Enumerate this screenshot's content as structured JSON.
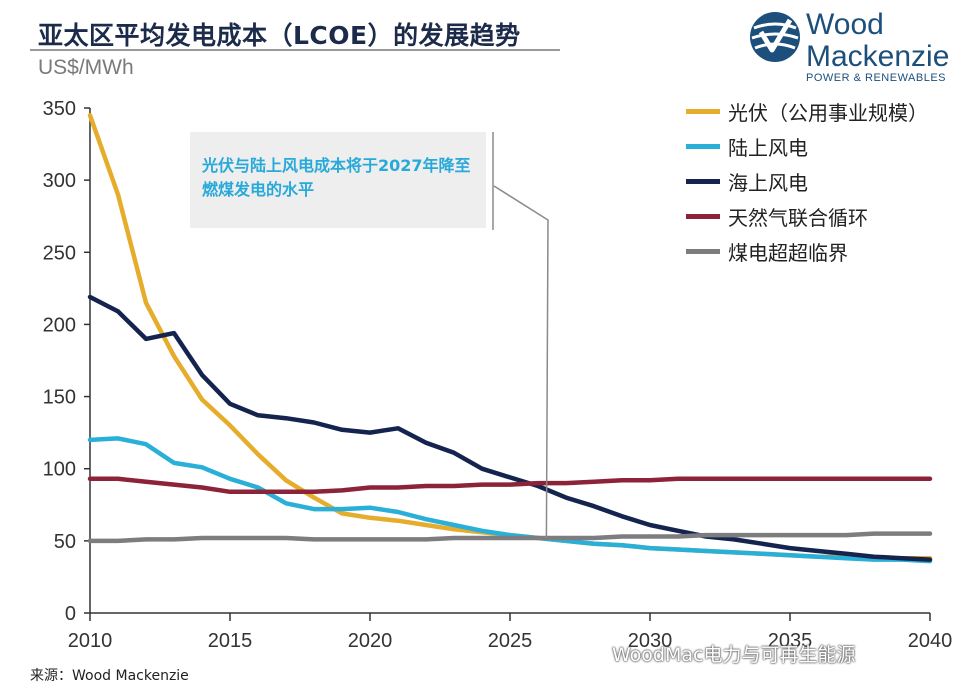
{
  "header": {
    "title": "亚太区平均发电成本（LCOE）的发展趋势",
    "unit": "US$/MWh"
  },
  "logo": {
    "line1": "Wood",
    "line2": "Mackenzie",
    "sub": "POWER & RENEWABLES",
    "color": "#1d4f7c"
  },
  "callout": {
    "text": "光伏与陆上风电成本将于2027年降至燃煤发电的水平"
  },
  "source": "来源：Wood Mackenzie",
  "watermark": "WoodMac电力与可再生能源",
  "chart_data": {
    "type": "line",
    "title": "亚太区平均发电成本（LCOE）的发展趋势",
    "ylabel": "US$/MWh",
    "xlabel": "",
    "xlim": [
      2010,
      2040
    ],
    "ylim": [
      0,
      350
    ],
    "x_ticks": [
      2010,
      2015,
      2020,
      2025,
      2030,
      2035,
      2040
    ],
    "y_ticks": [
      0,
      50,
      100,
      150,
      200,
      250,
      300,
      350
    ],
    "legend_position": "top-right",
    "grid": false,
    "x": [
      2010,
      2011,
      2012,
      2013,
      2014,
      2015,
      2016,
      2017,
      2018,
      2019,
      2020,
      2021,
      2022,
      2023,
      2024,
      2025,
      2026,
      2027,
      2028,
      2029,
      2030,
      2031,
      2032,
      2033,
      2034,
      2035,
      2036,
      2037,
      2038,
      2039,
      2040
    ],
    "series": [
      {
        "name": "光伏（公用事业规模）",
        "color": "#e6ad2d",
        "values": [
          345,
          290,
          215,
          178,
          148,
          130,
          110,
          92,
          80,
          69,
          66,
          64,
          61,
          58,
          56,
          54,
          52,
          50,
          48,
          47,
          45,
          44,
          43,
          42,
          41,
          40,
          39,
          39,
          38,
          38,
          38
        ]
      },
      {
        "name": "陆上风电",
        "color": "#2ab0d8",
        "values": [
          120,
          121,
          117,
          104,
          101,
          93,
          87,
          76,
          72,
          72,
          73,
          70,
          65,
          61,
          57,
          54,
          52,
          50,
          48,
          47,
          45,
          44,
          43,
          42,
          41,
          40,
          39,
          38,
          37,
          37,
          36
        ]
      },
      {
        "name": "海上风电",
        "color": "#14244f",
        "values": [
          219,
          209,
          190,
          194,
          165,
          145,
          137,
          135,
          132,
          127,
          125,
          128,
          118,
          111,
          100,
          94,
          88,
          80,
          74,
          67,
          61,
          57,
          53,
          51,
          48,
          45,
          43,
          41,
          39,
          38,
          37
        ]
      },
      {
        "name": "天然气联合循环",
        "color": "#8c2338",
        "values": [
          93,
          93,
          91,
          89,
          87,
          84,
          84,
          84,
          84,
          85,
          87,
          87,
          88,
          88,
          89,
          89,
          90,
          90,
          91,
          92,
          92,
          93,
          93,
          93,
          93,
          93,
          93,
          93,
          93,
          93,
          93
        ]
      },
      {
        "name": "煤电超超临界",
        "color": "#7d7d80",
        "values": [
          50,
          50,
          51,
          51,
          52,
          52,
          52,
          52,
          51,
          51,
          51,
          51,
          51,
          52,
          52,
          52,
          52,
          52,
          52,
          53,
          53,
          53,
          54,
          54,
          54,
          54,
          54,
          54,
          55,
          55,
          55
        ]
      }
    ]
  }
}
